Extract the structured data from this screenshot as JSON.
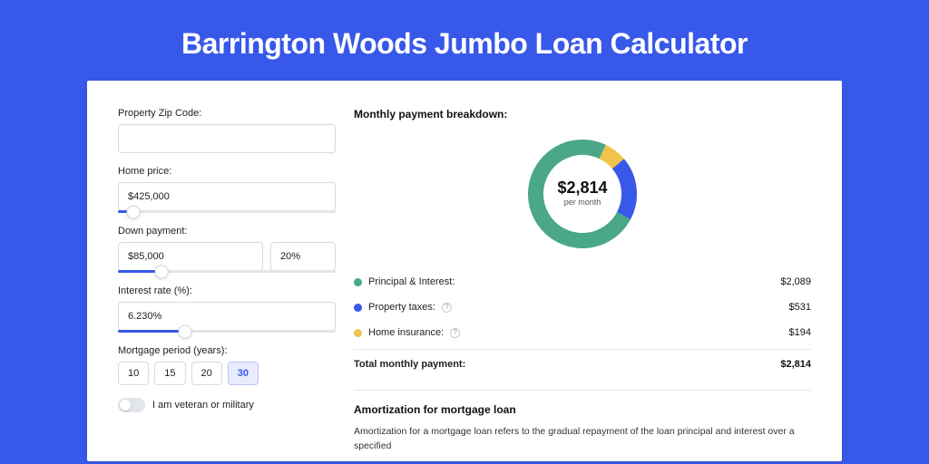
{
  "page": {
    "title": "Barrington Woods Jumbo Loan Calculator",
    "background_color": "#3858e9",
    "card_background": "#ffffff"
  },
  "form": {
    "zip": {
      "label": "Property Zip Code:",
      "value": ""
    },
    "price": {
      "label": "Home price:",
      "value": "$425,000",
      "slider_pct": 7
    },
    "down": {
      "label": "Down payment:",
      "value": "$85,000",
      "pct_value": "20%",
      "slider_pct": 20
    },
    "rate": {
      "label": "Interest rate (%):",
      "value": "6.230%",
      "slider_pct": 31
    },
    "period": {
      "label": "Mortgage period (years):",
      "options": [
        "10",
        "15",
        "20",
        "30"
      ],
      "active_index": 3
    },
    "veteran": {
      "label": "I am veteran or military",
      "enabled": false
    }
  },
  "breakdown": {
    "title": "Monthly payment breakdown:",
    "donut": {
      "center_value": "$2,814",
      "center_sub": "per month",
      "thickness": 17,
      "radius": 60,
      "segments": [
        {
          "name": "principal_interest",
          "value": 2089,
          "pct": 74.2,
          "color": "#4aa789"
        },
        {
          "name": "property_taxes",
          "value": 531,
          "pct": 18.9,
          "color": "#3858e9"
        },
        {
          "name": "home_insurance",
          "value": 194,
          "pct": 6.9,
          "color": "#f0c44c"
        }
      ]
    },
    "rows": [
      {
        "label": "Principal & Interest:",
        "value": "$2,089",
        "color": "#4aa789",
        "info": false
      },
      {
        "label": "Property taxes:",
        "value": "$531",
        "color": "#3858e9",
        "info": true
      },
      {
        "label": "Home insurance:",
        "value": "$194",
        "color": "#f0c44c",
        "info": true
      }
    ],
    "total": {
      "label": "Total monthly payment:",
      "value": "$2,814"
    }
  },
  "amortization": {
    "title": "Amortization for mortgage loan",
    "text": "Amortization for a mortgage loan refers to the gradual repayment of the loan principal and interest over a specified"
  },
  "glyphs": {
    "info": "?"
  }
}
